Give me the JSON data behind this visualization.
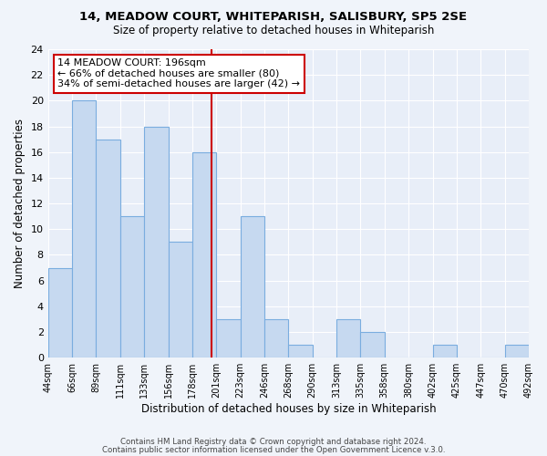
{
  "title": "14, MEADOW COURT, WHITEPARISH, SALISBURY, SP5 2SE",
  "subtitle": "Size of property relative to detached houses in Whiteparish",
  "xlabel": "Distribution of detached houses by size in Whiteparish",
  "ylabel": "Number of detached properties",
  "footer1": "Contains HM Land Registry data © Crown copyright and database right 2024.",
  "footer2": "Contains public sector information licensed under the Open Government Licence v.3.0.",
  "bin_labels": [
    "44sqm",
    "66sqm",
    "89sqm",
    "111sqm",
    "133sqm",
    "156sqm",
    "178sqm",
    "201sqm",
    "223sqm",
    "246sqm",
    "268sqm",
    "290sqm",
    "313sqm",
    "335sqm",
    "358sqm",
    "380sqm",
    "402sqm",
    "425sqm",
    "447sqm",
    "470sqm",
    "492sqm"
  ],
  "bar_counts": [
    7,
    20,
    17,
    11,
    18,
    9,
    16,
    3,
    11,
    3,
    1,
    0,
    3,
    2,
    0,
    0,
    1,
    0,
    0,
    1
  ],
  "property_line_bin_index": 6.5,
  "bar_color": "#c6d9f0",
  "bar_edge_color": "#7aaddf",
  "property_line_color": "#cc0000",
  "annotation_line1": "14 MEADOW COURT: 196sqm",
  "annotation_line2": "← 66% of detached houses are smaller (80)",
  "annotation_line3": "34% of semi-detached houses are larger (42) →",
  "annotation_box_color": "white",
  "annotation_box_edge": "#cc0000",
  "ylim": [
    0,
    24
  ],
  "yticks": [
    0,
    2,
    4,
    6,
    8,
    10,
    12,
    14,
    16,
    18,
    20,
    22,
    24
  ],
  "background_color": "#f0f4fa",
  "plot_bg_color": "#e8eef8"
}
